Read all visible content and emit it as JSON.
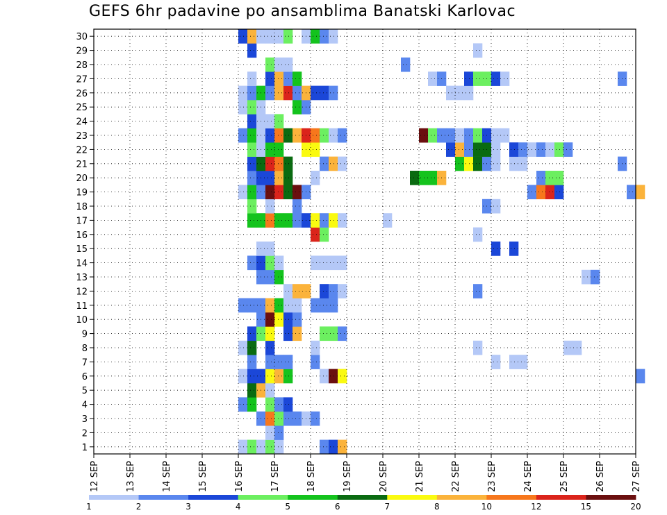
{
  "chart_data": {
    "type": "heatmap",
    "title": "GEFS 6hr padavine po ansamblima Banatski Karlovac",
    "y_ticks": [
      "1",
      "2",
      "3",
      "4",
      "5",
      "6",
      "7",
      "8",
      "9",
      "10",
      "11",
      "12",
      "13",
      "14",
      "15",
      "16",
      "17",
      "18",
      "19",
      "20",
      "21",
      "22",
      "23",
      "24",
      "25",
      "26",
      "27",
      "28",
      "29",
      "30"
    ],
    "x_ticks": [
      "12 SEP",
      "13 SEP",
      "14 SEP",
      "15 SEP",
      "16 SEP",
      "17 SEP",
      "18 SEP",
      "19 SEP",
      "20 SEP",
      "21 SEP",
      "22 SEP",
      "23 SEP",
      "24 SEP",
      "25 SEP",
      "26 SEP",
      "27 SEP"
    ],
    "grid": true,
    "legend": {
      "placement": "bottom",
      "thresholds": [
        "1",
        "2",
        "3",
        "4",
        "5",
        "6",
        "7",
        "8",
        "10",
        "12",
        "15",
        "20"
      ],
      "colors": [
        "#b4c8f7",
        "#5a87ee",
        "#1b47d8",
        "#6cef60",
        "#14c31d",
        "#0a6b11",
        "#fafa10",
        "#fbb33b",
        "#f7771c",
        "#db241b",
        "#6b0f0f"
      ]
    },
    "cells": [
      [
        16.0,
        1,
        1
      ],
      [
        16.25,
        1,
        4
      ],
      [
        16.5,
        1,
        1
      ],
      [
        16.75,
        1,
        4
      ],
      [
        17.0,
        1,
        1
      ],
      [
        18.25,
        1,
        2
      ],
      [
        18.5,
        1,
        3
      ],
      [
        18.75,
        1,
        8
      ],
      [
        16.75,
        2,
        1
      ],
      [
        17.0,
        2,
        2
      ],
      [
        16.5,
        3,
        2
      ],
      [
        16.75,
        3,
        9
      ],
      [
        17.0,
        3,
        4
      ],
      [
        17.25,
        3,
        2
      ],
      [
        17.5,
        3,
        2
      ],
      [
        17.75,
        3,
        1
      ],
      [
        18.0,
        3,
        2
      ],
      [
        16.0,
        4,
        2
      ],
      [
        16.25,
        4,
        5
      ],
      [
        16.75,
        4,
        4
      ],
      [
        17.0,
        4,
        2
      ],
      [
        17.25,
        4,
        3
      ],
      [
        16.25,
        5,
        6
      ],
      [
        16.5,
        5,
        8
      ],
      [
        16.75,
        5,
        1
      ],
      [
        16.0,
        6,
        1
      ],
      [
        16.25,
        6,
        3
      ],
      [
        16.5,
        6,
        3
      ],
      [
        16.75,
        6,
        7
      ],
      [
        17.0,
        6,
        8
      ],
      [
        17.25,
        6,
        5
      ],
      [
        18.25,
        6,
        1
      ],
      [
        18.5,
        6,
        11
      ],
      [
        18.75,
        6,
        7
      ],
      [
        27.0,
        6,
        2
      ],
      [
        16.25,
        7,
        2
      ],
      [
        16.75,
        7,
        2
      ],
      [
        17.0,
        7,
        2
      ],
      [
        17.25,
        7,
        2
      ],
      [
        18.0,
        7,
        2
      ],
      [
        23.0,
        7,
        1
      ],
      [
        23.5,
        7,
        1
      ],
      [
        23.75,
        7,
        1
      ],
      [
        16.0,
        8,
        1
      ],
      [
        16.25,
        8,
        6
      ],
      [
        16.75,
        8,
        3
      ],
      [
        18.0,
        8,
        1
      ],
      [
        22.5,
        8,
        1
      ],
      [
        25.0,
        8,
        1
      ],
      [
        25.25,
        8,
        1
      ],
      [
        16.25,
        9,
        3
      ],
      [
        16.5,
        9,
        4
      ],
      [
        16.75,
        9,
        7
      ],
      [
        17.25,
        9,
        3
      ],
      [
        17.5,
        9,
        8
      ],
      [
        18.25,
        9,
        4
      ],
      [
        18.5,
        9,
        4
      ],
      [
        18.75,
        9,
        2
      ],
      [
        16.5,
        10,
        2
      ],
      [
        16.75,
        10,
        11
      ],
      [
        17.0,
        10,
        7
      ],
      [
        17.25,
        10,
        3
      ],
      [
        17.5,
        10,
        2
      ],
      [
        16.0,
        11,
        2
      ],
      [
        16.25,
        11,
        2
      ],
      [
        16.5,
        11,
        2
      ],
      [
        16.75,
        11,
        8
      ],
      [
        17.0,
        11,
        5
      ],
      [
        17.25,
        11,
        1
      ],
      [
        17.5,
        11,
        1
      ],
      [
        18.0,
        11,
        2
      ],
      [
        18.25,
        11,
        2
      ],
      [
        18.5,
        11,
        2
      ],
      [
        17.25,
        12,
        1
      ],
      [
        17.5,
        12,
        8
      ],
      [
        17.75,
        12,
        8
      ],
      [
        18.25,
        12,
        3
      ],
      [
        18.5,
        12,
        2
      ],
      [
        18.75,
        12,
        1
      ],
      [
        22.5,
        12,
        2
      ],
      [
        16.5,
        13,
        2
      ],
      [
        16.75,
        13,
        2
      ],
      [
        17.0,
        13,
        5
      ],
      [
        25.5,
        13,
        1
      ],
      [
        25.75,
        13,
        2
      ],
      [
        16.25,
        14,
        2
      ],
      [
        16.5,
        14,
        3
      ],
      [
        16.75,
        14,
        4
      ],
      [
        17.0,
        14,
        1
      ],
      [
        18.0,
        14,
        1
      ],
      [
        18.25,
        14,
        1
      ],
      [
        18.5,
        14,
        1
      ],
      [
        18.75,
        14,
        1
      ],
      [
        16.5,
        15,
        1
      ],
      [
        16.75,
        15,
        1
      ],
      [
        23.0,
        15,
        3
      ],
      [
        23.5,
        15,
        3
      ],
      [
        18.0,
        16,
        10
      ],
      [
        18.25,
        16,
        4
      ],
      [
        22.5,
        16,
        1
      ],
      [
        16.25,
        17,
        5
      ],
      [
        16.5,
        17,
        5
      ],
      [
        16.75,
        17,
        9
      ],
      [
        17.0,
        17,
        5
      ],
      [
        17.25,
        17,
        5
      ],
      [
        17.5,
        17,
        2
      ],
      [
        17.75,
        17,
        3
      ],
      [
        18.0,
        17,
        7
      ],
      [
        18.25,
        17,
        2
      ],
      [
        18.5,
        17,
        7
      ],
      [
        18.75,
        17,
        1
      ],
      [
        20.0,
        17,
        1
      ],
      [
        16.25,
        18,
        4
      ],
      [
        16.75,
        18,
        1
      ],
      [
        17.5,
        18,
        2
      ],
      [
        22.75,
        18,
        2
      ],
      [
        23.0,
        18,
        1
      ],
      [
        16.0,
        19,
        1
      ],
      [
        16.25,
        19,
        5
      ],
      [
        16.5,
        19,
        2
      ],
      [
        16.75,
        19,
        11
      ],
      [
        17.0,
        19,
        10
      ],
      [
        17.25,
        19,
        6
      ],
      [
        17.5,
        19,
        11
      ],
      [
        17.75,
        19,
        2
      ],
      [
        24.0,
        19,
        2
      ],
      [
        24.25,
        19,
        9
      ],
      [
        24.5,
        19,
        10
      ],
      [
        24.75,
        19,
        3
      ],
      [
        26.75,
        19,
        2
      ],
      [
        27.0,
        19,
        8
      ],
      [
        16.25,
        20,
        2
      ],
      [
        16.5,
        20,
        3
      ],
      [
        16.75,
        20,
        3
      ],
      [
        17.0,
        20,
        8
      ],
      [
        17.25,
        20,
        6
      ],
      [
        18.0,
        20,
        1
      ],
      [
        20.75,
        20,
        6
      ],
      [
        21.0,
        20,
        5
      ],
      [
        21.25,
        20,
        5
      ],
      [
        21.5,
        20,
        8
      ],
      [
        24.25,
        20,
        2
      ],
      [
        24.5,
        20,
        4
      ],
      [
        24.75,
        20,
        4
      ],
      [
        16.25,
        21,
        3
      ],
      [
        16.5,
        21,
        6
      ],
      [
        16.75,
        21,
        10
      ],
      [
        17.0,
        21,
        9
      ],
      [
        17.25,
        21,
        6
      ],
      [
        18.25,
        21,
        2
      ],
      [
        18.5,
        21,
        8
      ],
      [
        18.75,
        21,
        1
      ],
      [
        22.0,
        21,
        5
      ],
      [
        22.25,
        21,
        7
      ],
      [
        22.5,
        21,
        6
      ],
      [
        22.75,
        21,
        2
      ],
      [
        23.0,
        21,
        1
      ],
      [
        23.5,
        21,
        1
      ],
      [
        23.75,
        21,
        1
      ],
      [
        26.5,
        21,
        2
      ],
      [
        16.25,
        22,
        4
      ],
      [
        16.5,
        22,
        1
      ],
      [
        16.75,
        22,
        5
      ],
      [
        17.0,
        22,
        5
      ],
      [
        17.75,
        22,
        7
      ],
      [
        18.0,
        22,
        7
      ],
      [
        21.75,
        22,
        3
      ],
      [
        22.0,
        22,
        8
      ],
      [
        22.25,
        22,
        2
      ],
      [
        22.5,
        22,
        6
      ],
      [
        22.75,
        22,
        6
      ],
      [
        23.0,
        22,
        1
      ],
      [
        23.5,
        22,
        3
      ],
      [
        23.75,
        22,
        2
      ],
      [
        24.0,
        22,
        1
      ],
      [
        24.25,
        22,
        2
      ],
      [
        24.5,
        22,
        1
      ],
      [
        24.75,
        22,
        4
      ],
      [
        25.0,
        22,
        2
      ],
      [
        16.0,
        23,
        2
      ],
      [
        16.25,
        23,
        5
      ],
      [
        16.5,
        23,
        1
      ],
      [
        16.75,
        23,
        3
      ],
      [
        17.0,
        23,
        9
      ],
      [
        17.25,
        23,
        6
      ],
      [
        17.5,
        23,
        8
      ],
      [
        17.75,
        23,
        10
      ],
      [
        18.0,
        23,
        9
      ],
      [
        18.25,
        23,
        4
      ],
      [
        18.5,
        23,
        1
      ],
      [
        18.75,
        23,
        2
      ],
      [
        21.0,
        23,
        11
      ],
      [
        21.25,
        23,
        4
      ],
      [
        21.5,
        23,
        2
      ],
      [
        21.75,
        23,
        2
      ],
      [
        22.0,
        23,
        1
      ],
      [
        22.25,
        23,
        2
      ],
      [
        22.5,
        23,
        4
      ],
      [
        22.75,
        23,
        3
      ],
      [
        23.0,
        23,
        1
      ],
      [
        23.25,
        23,
        1
      ],
      [
        16.25,
        24,
        3
      ],
      [
        16.5,
        24,
        1
      ],
      [
        16.75,
        24,
        1
      ],
      [
        17.0,
        24,
        4
      ],
      [
        16.0,
        25,
        1
      ],
      [
        16.25,
        25,
        4
      ],
      [
        16.5,
        25,
        1
      ],
      [
        17.5,
        25,
        5
      ],
      [
        17.75,
        25,
        2
      ],
      [
        16.0,
        26,
        1
      ],
      [
        16.25,
        26,
        2
      ],
      [
        16.5,
        26,
        5
      ],
      [
        16.75,
        26,
        2
      ],
      [
        17.0,
        26,
        8
      ],
      [
        17.25,
        26,
        10
      ],
      [
        17.5,
        26,
        2
      ],
      [
        17.75,
        26,
        8
      ],
      [
        18.0,
        26,
        3
      ],
      [
        18.25,
        26,
        3
      ],
      [
        18.5,
        26,
        2
      ],
      [
        21.75,
        26,
        1
      ],
      [
        22.0,
        26,
        1
      ],
      [
        22.25,
        26,
        1
      ],
      [
        16.25,
        27,
        1
      ],
      [
        16.75,
        27,
        3
      ],
      [
        17.0,
        27,
        8
      ],
      [
        17.25,
        27,
        2
      ],
      [
        17.5,
        27,
        5
      ],
      [
        21.25,
        27,
        1
      ],
      [
        21.5,
        27,
        2
      ],
      [
        22.25,
        27,
        3
      ],
      [
        22.5,
        27,
        4
      ],
      [
        22.75,
        27,
        4
      ],
      [
        23.0,
        27,
        3
      ],
      [
        23.25,
        27,
        1
      ],
      [
        26.5,
        27,
        2
      ],
      [
        16.75,
        28,
        4
      ],
      [
        17.0,
        28,
        1
      ],
      [
        17.25,
        28,
        1
      ],
      [
        20.5,
        28,
        2
      ],
      [
        16.25,
        29,
        3
      ],
      [
        22.5,
        29,
        1
      ],
      [
        16.0,
        30,
        3
      ],
      [
        16.25,
        30,
        8
      ],
      [
        16.5,
        30,
        1
      ],
      [
        16.75,
        30,
        1
      ],
      [
        17.0,
        30,
        1
      ],
      [
        17.25,
        30,
        4
      ],
      [
        17.75,
        30,
        1
      ],
      [
        18.0,
        30,
        5
      ],
      [
        18.25,
        30,
        2
      ],
      [
        18.5,
        30,
        1
      ]
    ]
  }
}
